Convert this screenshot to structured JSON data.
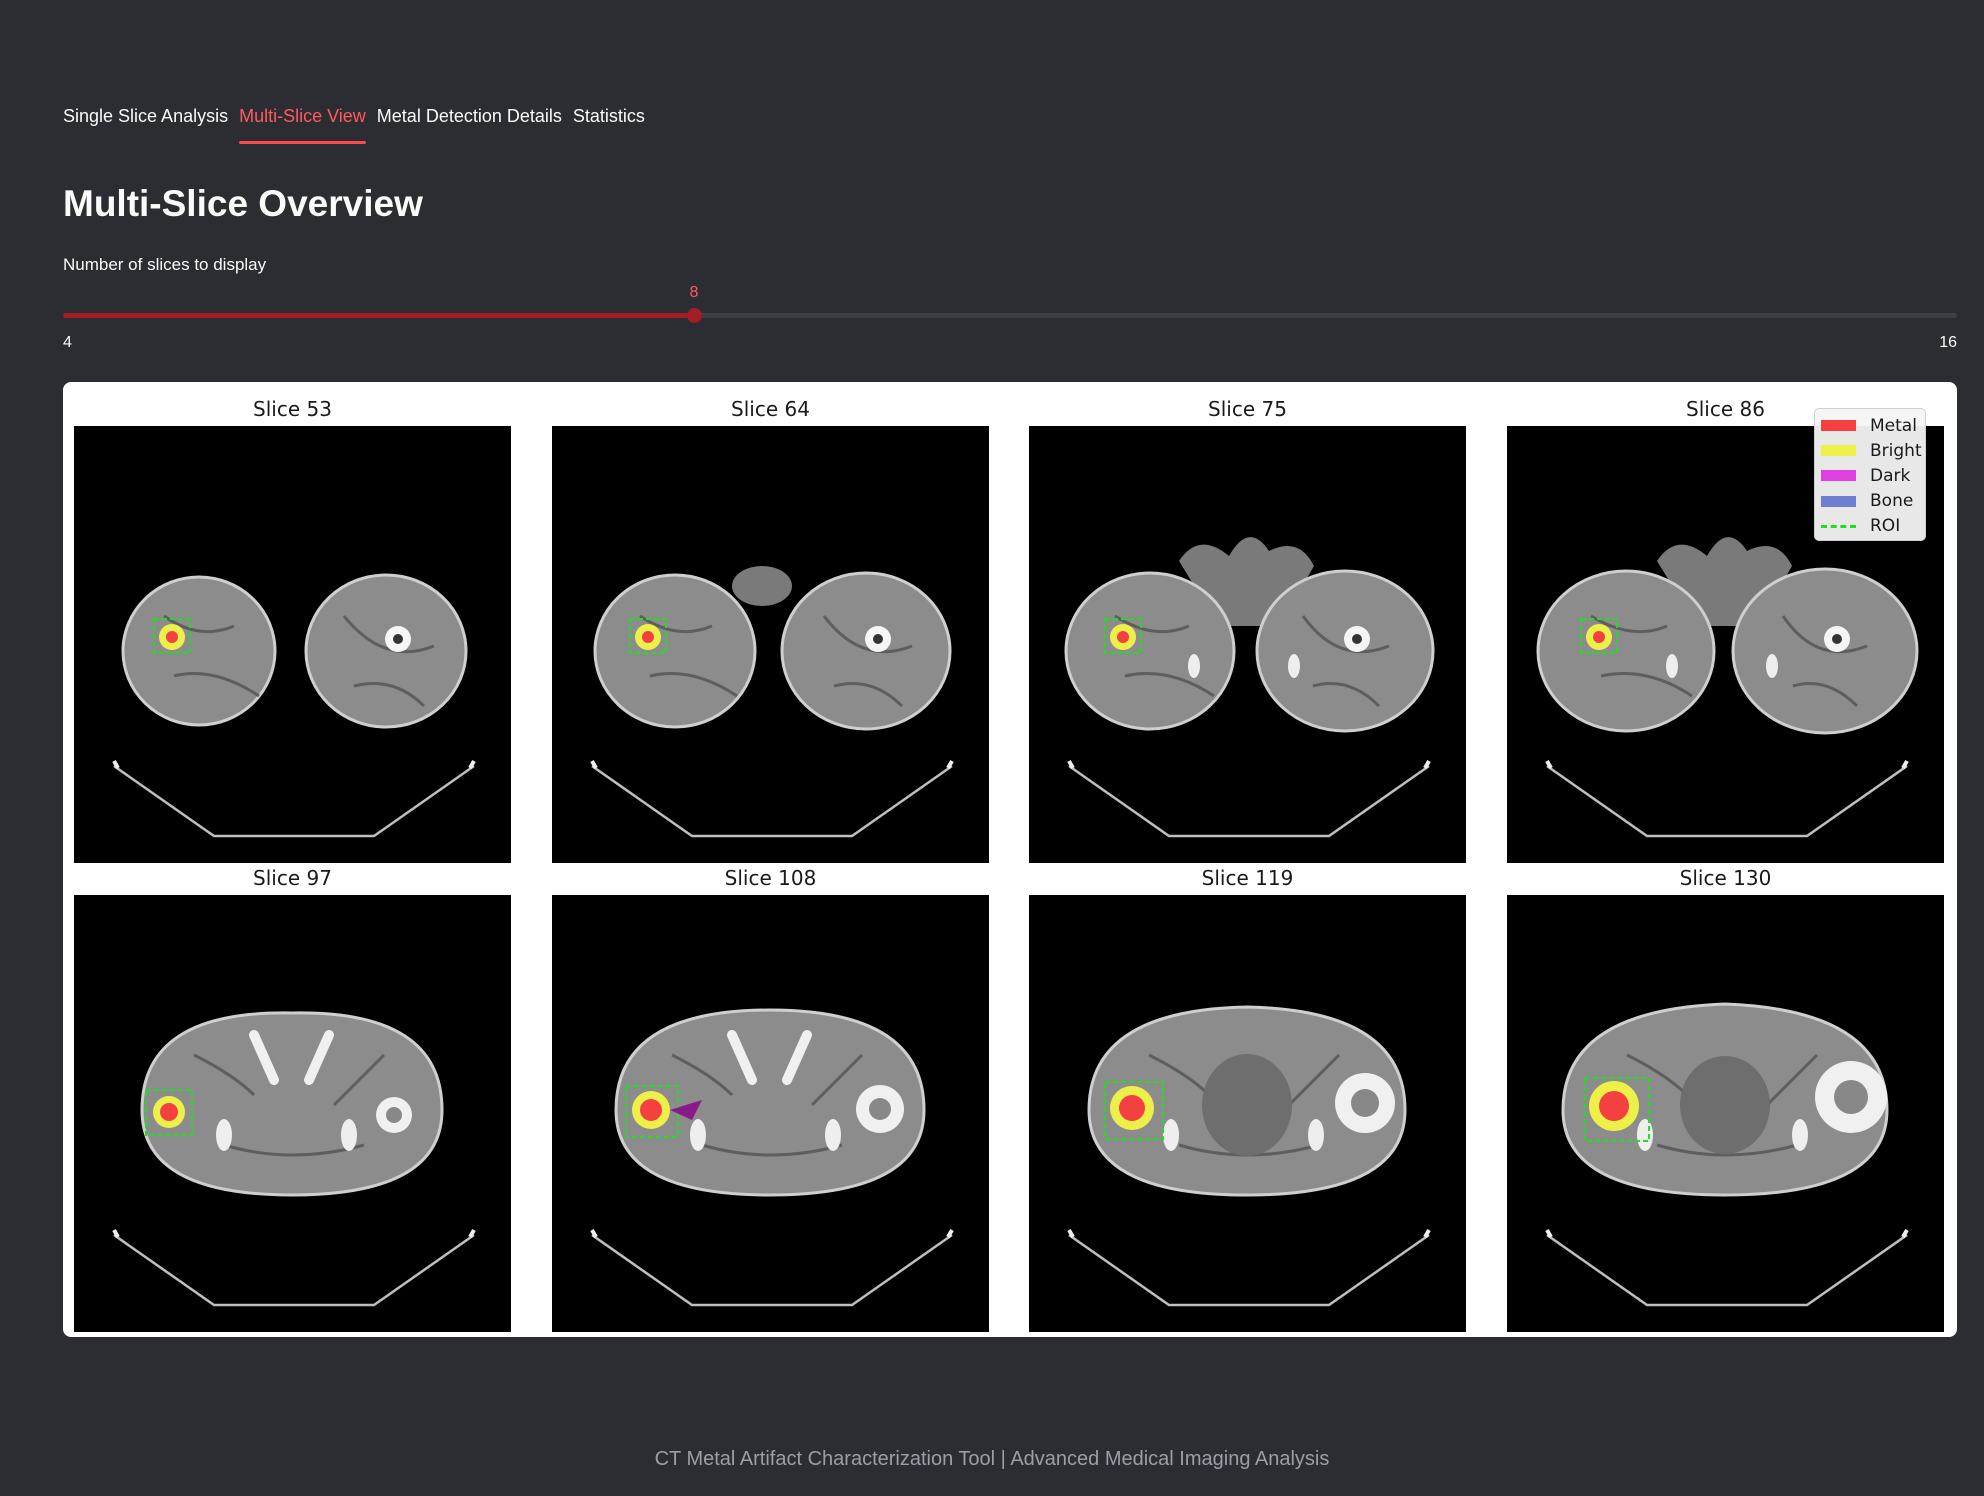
{
  "tabs": [
    {
      "label": "Single Slice Analysis",
      "active": false
    },
    {
      "label": "Multi-Slice View",
      "active": true
    },
    {
      "label": "Metal Detection Details",
      "active": false
    },
    {
      "label": "Statistics",
      "active": false
    }
  ],
  "page_title": "Multi-Slice Overview",
  "slider": {
    "label": "Number of slices to display",
    "min": 4,
    "max": 16,
    "value": 8,
    "color": "#a31d25"
  },
  "slices": [
    {
      "title": "Slice 53",
      "view": "thighs"
    },
    {
      "title": "Slice 64",
      "view": "thighs"
    },
    {
      "title": "Slice 75",
      "view": "thighs"
    },
    {
      "title": "Slice 86",
      "view": "thighs"
    },
    {
      "title": "Slice 97",
      "view": "pelvis"
    },
    {
      "title": "Slice 108",
      "view": "pelvis"
    },
    {
      "title": "Slice 119",
      "view": "pelvis"
    },
    {
      "title": "Slice 130",
      "view": "pelvis"
    }
  ],
  "legend": [
    {
      "label": "Metal",
      "color": "#f44040"
    },
    {
      "label": "Bright",
      "color": "#eef04a"
    },
    {
      "label": "Dark",
      "color": "#e040e0"
    },
    {
      "label": "Bone",
      "color": "#6f7fd0"
    },
    {
      "label": "ROI",
      "color": "#22dd22",
      "dashed": true
    }
  ],
  "footer": "CT Metal Artifact Characterization Tool | Advanced Medical Imaging Analysis"
}
